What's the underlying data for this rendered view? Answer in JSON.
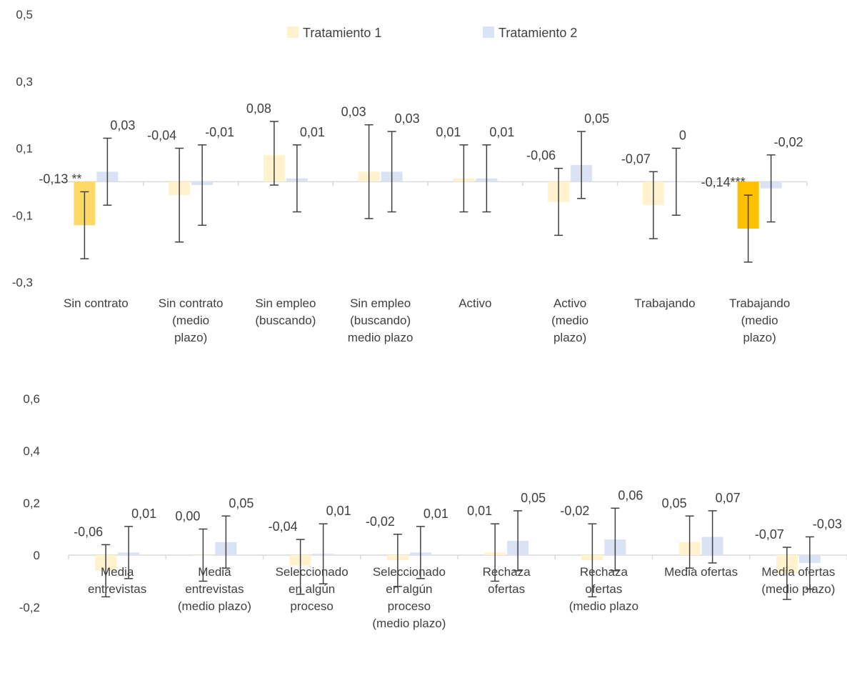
{
  "legend": [
    {
      "name": "Tratamiento 1",
      "color": "#FFF2CC"
    },
    {
      "name": "Tratamiento 2",
      "color": "#DAE3F3"
    }
  ],
  "colors": {
    "t1_light": "#FFF2CC",
    "t1_medium": "#FFD966",
    "t1_strong": "#FFC000",
    "t2_light": "#DAE3F3",
    "error_bar": "#404040",
    "axis": "#D9D9D9"
  },
  "chart_data": [
    {
      "type": "bar",
      "ylim": [
        -0.3,
        0.5
      ],
      "yticks": [
        "0,5",
        "0,3",
        "0,1",
        "-0,1",
        "-0,3"
      ],
      "ytick_values": [
        0.5,
        0.3,
        0.1,
        -0.1,
        -0.3
      ],
      "categories": [
        [
          "Sin contrato"
        ],
        [
          "Sin contrato",
          "(medio",
          "plazo)"
        ],
        [
          "Sin empleo",
          "(buscando)"
        ],
        [
          "Sin empleo",
          "(buscando)",
          "medio plazo"
        ],
        [
          "Activo"
        ],
        [
          "Activo",
          "(medio",
          "plazo)"
        ],
        [
          "Trabajando"
        ],
        [
          "Trabajando",
          "(medio",
          "plazo)"
        ]
      ],
      "series": [
        {
          "name": "Tratamiento 1",
          "values": [
            -0.13,
            -0.04,
            0.08,
            0.03,
            0.01,
            -0.06,
            -0.07,
            -0.14
          ],
          "err_low": [
            -0.23,
            -0.18,
            -0.01,
            -0.11,
            -0.09,
            -0.16,
            -0.17,
            -0.24
          ],
          "err_high": [
            -0.03,
            0.1,
            0.18,
            0.17,
            0.11,
            0.04,
            0.03,
            -0.04
          ],
          "labels": [
            "-0,13 **",
            "-0,04",
            "0,08",
            "0,03",
            "0,01",
            "-0,06",
            "-0,07",
            "-0,14***"
          ],
          "shade": [
            "medium",
            "light",
            "light",
            "light",
            "light",
            "light",
            "light",
            "strong"
          ]
        },
        {
          "name": "Tratamiento 2",
          "values": [
            0.03,
            -0.01,
            0.01,
            0.03,
            0.01,
            0.05,
            0.0,
            -0.02
          ],
          "err_low": [
            -0.07,
            -0.13,
            -0.09,
            -0.09,
            -0.09,
            -0.05,
            -0.1,
            -0.12
          ],
          "err_high": [
            0.13,
            0.11,
            0.11,
            0.15,
            0.11,
            0.15,
            0.1,
            0.08
          ],
          "labels": [
            "0,03",
            "-0,01",
            "0,01",
            "0,03",
            "0,01",
            "0,05",
            "0",
            "-0,02"
          ],
          "shade": [
            "light",
            "light",
            "light",
            "light",
            "light",
            "light",
            "light",
            "light"
          ]
        }
      ]
    },
    {
      "type": "bar",
      "ylim": [
        -0.2,
        0.6
      ],
      "yticks": [
        "0,6",
        "0,4",
        "0,2",
        "0",
        "-0,2"
      ],
      "ytick_values": [
        0.6,
        0.4,
        0.2,
        0.0,
        -0.2
      ],
      "categories": [
        [
          "Media",
          "entrevistas"
        ],
        [
          "Media",
          "entrevistas",
          "(medio plazo)"
        ],
        [
          "Seleccionado",
          "en algún",
          "proceso"
        ],
        [
          "Seleccionado",
          "en algún",
          "proceso",
          "(medio plazo)"
        ],
        [
          "Rechaza",
          "ofertas"
        ],
        [
          "Rechaza",
          "ofertas",
          "(medio plazo"
        ],
        [
          "Media ofertas"
        ],
        [
          "Media ofertas",
          "(medio plazo)"
        ]
      ],
      "series": [
        {
          "name": "Tratamiento 1",
          "values": [
            -0.06,
            0.0,
            -0.04,
            -0.02,
            0.01,
            -0.02,
            0.05,
            -0.07
          ],
          "err_low": [
            -0.16,
            -0.1,
            -0.15,
            -0.12,
            -0.1,
            -0.16,
            -0.05,
            -0.17
          ],
          "err_high": [
            0.04,
            0.1,
            0.06,
            0.08,
            0.12,
            0.12,
            0.15,
            0.03
          ],
          "labels": [
            "-0,06",
            "0,00",
            "-0,04",
            "-0,02",
            "0,01",
            "-0,02",
            "0,05",
            "-0,07"
          ],
          "shade": [
            "light",
            "light",
            "light",
            "light",
            "light",
            "light",
            "light",
            "light"
          ]
        },
        {
          "name": "Tratamiento 2",
          "values": [
            0.01,
            0.05,
            0.005,
            0.01,
            0.055,
            0.06,
            0.07,
            -0.03
          ],
          "err_low": [
            -0.09,
            -0.05,
            -0.11,
            -0.09,
            -0.06,
            -0.06,
            -0.03,
            -0.13
          ],
          "err_high": [
            0.11,
            0.15,
            0.12,
            0.11,
            0.17,
            0.18,
            0.17,
            0.07
          ],
          "labels": [
            "0,01",
            "0,05",
            "0,01",
            "0,01",
            "0,05",
            "0,06",
            "0,07",
            "-0,03"
          ],
          "shade": [
            "light",
            "light",
            "light",
            "light",
            "light",
            "light",
            "light",
            "light"
          ]
        }
      ]
    }
  ]
}
